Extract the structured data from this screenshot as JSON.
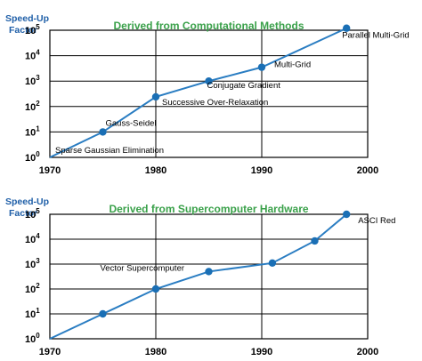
{
  "chart_data": [
    {
      "type": "line",
      "title": "Derived from Computational Methods",
      "ylabel": "Speed-Up Factor",
      "ylabel_lines": [
        "Speed-Up",
        "Factor"
      ],
      "yscale": "log",
      "xlim": [
        1970,
        2000
      ],
      "ylim_exponents": [
        0,
        5
      ],
      "x_ticks": [
        "1970",
        "1980",
        "1990",
        "2000"
      ],
      "y_tick_bases": [
        "10",
        "10",
        "10",
        "10",
        "10",
        "10"
      ],
      "y_tick_exponents": [
        "0",
        "1",
        "2",
        "3",
        "4",
        "5"
      ],
      "grid": true,
      "series": [
        {
          "x": [
            1970,
            1975,
            1980,
            1985,
            1990,
            1998
          ],
          "y": [
            1,
            10,
            240,
            1000,
            3500,
            120000
          ]
        }
      ],
      "annotations": [
        {
          "text": "Sparse Gaussian Elimination",
          "x": 1970
        },
        {
          "text": "Gauss-Seidel",
          "x": 1975
        },
        {
          "text": "Successive Over-Relaxation",
          "x": 1980
        },
        {
          "text": "Conjugate Gradient",
          "x": 1985
        },
        {
          "text": "Multi-Grid",
          "x": 1990
        },
        {
          "text": "Parallel Multi-Grid",
          "x": 1998
        }
      ]
    },
    {
      "type": "line",
      "title": "Derived from Supercomputer Hardware",
      "ylabel": "Speed-Up Factor",
      "ylabel_lines": [
        "Speed-Up",
        "Factor"
      ],
      "yscale": "log",
      "xlim": [
        1970,
        2000
      ],
      "ylim_exponents": [
        0,
        5
      ],
      "x_ticks": [
        "1970",
        "1980",
        "1990",
        "2000"
      ],
      "y_tick_bases": [
        "10",
        "10",
        "10",
        "10",
        "10",
        "10"
      ],
      "y_tick_exponents": [
        "0",
        "1",
        "2",
        "3",
        "4",
        "5"
      ],
      "grid": true,
      "series": [
        {
          "x": [
            1970,
            1975,
            1980,
            1985,
            1991,
            1995,
            1998
          ],
          "y": [
            1,
            10,
            100,
            500,
            1100,
            8500,
            100000
          ]
        }
      ],
      "annotations": [
        {
          "text": "Vector Supercomputer",
          "x": 1985
        },
        {
          "text": "ASCI Red",
          "x": 1998
        }
      ]
    }
  ]
}
